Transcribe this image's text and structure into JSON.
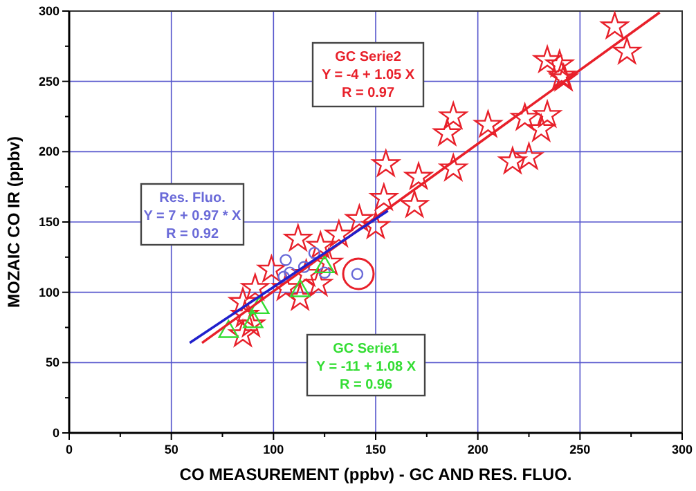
{
  "chart_data": {
    "type": "scatter",
    "xlabel": "CO MEASUREMENT (ppbv) - GC AND RES. FLUO.",
    "ylabel": "MOZAIC CO IR (ppbv)",
    "xlim": [
      0,
      300
    ],
    "ylim": [
      0,
      300
    ],
    "xticks": [
      0,
      {
        "value": 25,
        "label": null
      },
      50,
      {
        "value": 75,
        "label": null
      },
      100,
      {
        "value": 125,
        "label": null
      },
      150,
      {
        "value": 175,
        "label": null
      },
      200,
      {
        "value": 225,
        "label": null
      },
      250,
      {
        "value": 275,
        "label": null
      },
      300
    ],
    "yticks": [
      0,
      {
        "value": 25,
        "label": null
      },
      50,
      {
        "value": 75,
        "label": null
      },
      100,
      {
        "value": 125,
        "label": null
      },
      150,
      {
        "value": 175,
        "label": null
      },
      200,
      {
        "value": 225,
        "label": null
      },
      250,
      {
        "value": 275,
        "label": null
      },
      300
    ],
    "grid": true,
    "annotations": [
      "Y = -4 + 1.05 X",
      "R = 0.97",
      "Y = 7 + 0.97 * X",
      "R = 0.92",
      "Y = -11 + 1.08 X",
      "R = 0.96"
    ],
    "series": [
      {
        "name": "GC Serie2",
        "color": "#e8202a",
        "marker": "star",
        "x": [
          267,
          273,
          234,
          240,
          241,
          242,
          188,
          185,
          205,
          223,
          234,
          231,
          217,
          225,
          155,
          171,
          188,
          154,
          169,
          150,
          142,
          132,
          112,
          123,
          99,
          91,
          106,
          113,
          122,
          85,
          86,
          89,
          85,
          127,
          116
        ],
        "values": [
          289,
          271,
          265,
          262,
          254,
          252,
          225,
          213,
          219,
          224,
          226,
          216,
          193,
          196,
          191,
          182,
          188,
          167,
          162,
          147,
          152,
          141,
          138,
          133,
          116,
          103,
          103,
          96,
          106,
          93,
          84,
          77,
          70,
          121,
          113
        ]
      },
      {
        "name": "Res. Fluo.",
        "color": "#6a6ad8",
        "marker": "circle",
        "x": [
          106,
          108,
          115,
          120,
          125,
          105,
          141
        ],
        "values": [
          123,
          114,
          118,
          128,
          114,
          111,
          113
        ]
      },
      {
        "name": "GC Serie1",
        "color": "#33dd33",
        "marker": "triangle",
        "x": [
          78,
          93,
          125,
          90,
          113
        ],
        "values": [
          72,
          89,
          118,
          79,
          101
        ]
      },
      {
        "type": "line",
        "color": "#e8202a",
        "x": [
          65,
          289
        ],
        "values": [
          64,
          299
        ]
      },
      {
        "type": "line",
        "color": "#2020cc",
        "x": [
          59,
          156
        ],
        "values": [
          64,
          158
        ]
      }
    ]
  }
}
